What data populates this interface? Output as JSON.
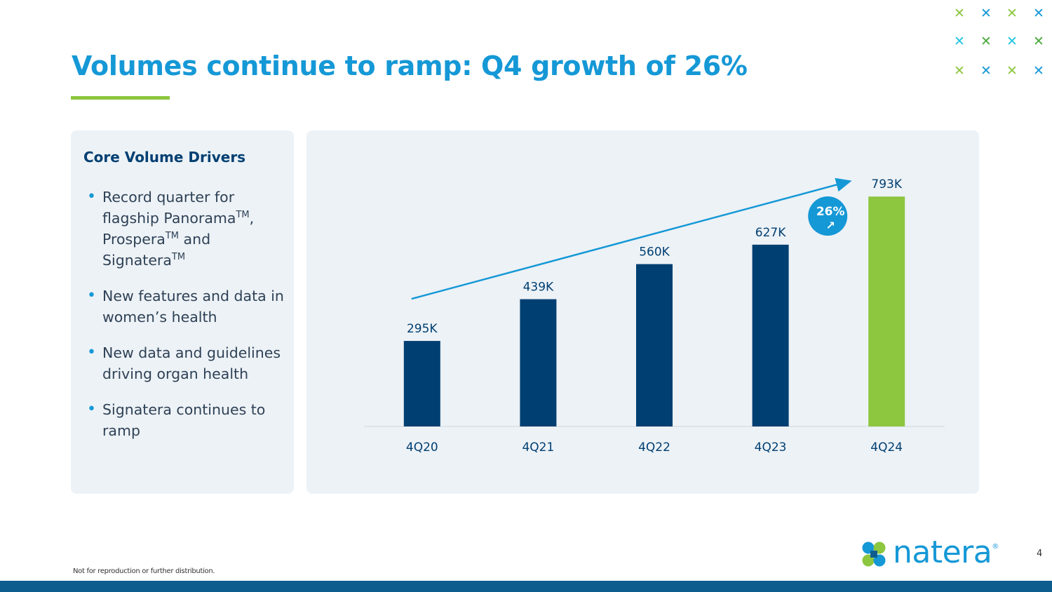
{
  "slide": {
    "title": "Volumes continue to ramp: Q4 growth of 26%",
    "footnote": "Not for reproduction or further distribution.",
    "page_number": "4"
  },
  "left_panel": {
    "heading": "Core Volume Drivers",
    "bullets": [
      {
        "parts": [
          "Record quarter for flagship Panorama",
          "TM",
          ", Prospera",
          "TM",
          " and Signatera",
          "TM"
        ]
      },
      {
        "text": "New features and data in women’s health"
      },
      {
        "text": "New data and guidelines driving organ health"
      },
      {
        "text": "Signatera continues to ramp"
      }
    ]
  },
  "chart_data": {
    "type": "bar",
    "categories": [
      "4Q20",
      "4Q21",
      "4Q22",
      "4Q23",
      "4Q24"
    ],
    "values": [
      295,
      439,
      560,
      627,
      793
    ],
    "data_labels": [
      "295K",
      "439K",
      "560K",
      "627K",
      "793K"
    ],
    "unit": "K",
    "ylim": [
      0,
      900
    ],
    "highlight_index": 4,
    "trend_line": true,
    "growth_badge": {
      "label": "26%",
      "arrow": "↗"
    },
    "colors": {
      "bar": "#003f72",
      "highlight": "#8dc63f",
      "trend": "#1598d6",
      "label": "#003f72"
    }
  },
  "logo": {
    "text": "natera",
    "mark": "®"
  },
  "decor": {
    "x_glyph": "✕",
    "x_colors": [
      [
        "#8dc63f",
        "#1598d6",
        "#8dc63f",
        "#1598d6"
      ],
      [
        "#20c4e0",
        "#4aaa3c",
        "#20c4e0",
        "#4aaa3c"
      ],
      [
        "#8dc63f",
        "#1598d6",
        "#8dc63f",
        "#1598d6"
      ]
    ]
  },
  "colors": {
    "title": "#1598d6",
    "accent_green": "#8dc63f",
    "navy": "#003f72",
    "bottom_bar": "#0e5d8f"
  }
}
